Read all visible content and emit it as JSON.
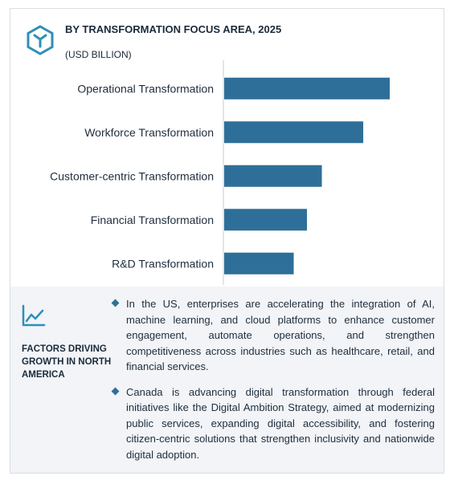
{
  "header": {
    "title": "BY TRANSFORMATION FOCUS AREA, 2025",
    "subtitle": "(USD BILLION)"
  },
  "colors": {
    "bar": "#2e6f99",
    "accent": "#2e8fb8",
    "axis": "#c7cdd3"
  },
  "chart_data": {
    "type": "bar",
    "orientation": "horizontal",
    "categories": [
      "Operational Transformation",
      "Workforce Transformation",
      "Customer-centric Transformation",
      "Financial Transformation",
      "R&D Transformation"
    ],
    "values": [
      100,
      84,
      59,
      50,
      42
    ],
    "xlim": [
      0,
      100
    ],
    "title": "BY TRANSFORMATION FOCUS AREA, 2025",
    "xlabel": "",
    "ylabel": "",
    "grid": false,
    "legend": "none"
  },
  "factors": {
    "label": "FACTORS DRIVING GROWTH IN NORTH AMERICA",
    "icon": "trend-chart-icon",
    "bullets": [
      "In the US, enterprises are accelerating the integration of AI, machine learning, and cloud platforms to enhance customer engagement, automate operations, and strengthen competitiveness across industries such as healthcare, retail, and financial services.",
      "Canada is advancing digital transformation through federal initiatives like the Digital Ambition Strategy, aimed at modernizing public services, expanding digital accessibility, and fostering citizen-centric solutions that strengthen inclusivity and nationwide digital adoption."
    ]
  }
}
